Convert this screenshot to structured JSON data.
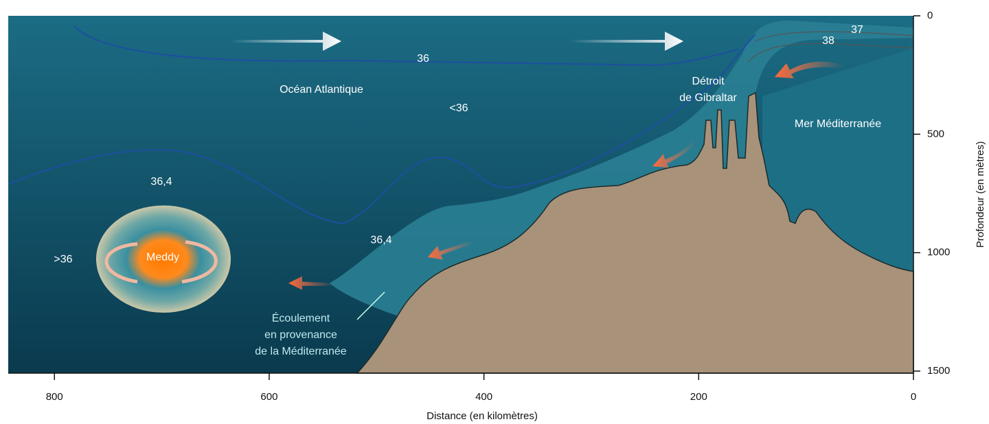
{
  "axes": {
    "x": {
      "label": "Distance (en kilomètres)",
      "lim": [
        843,
        0
      ],
      "ticks": [
        800,
        600,
        400,
        200,
        0
      ]
    },
    "y": {
      "label": "Profondeur (en mètres)",
      "lim": [
        0,
        1500
      ],
      "ticks": [
        0,
        500,
        1000,
        1500
      ]
    }
  },
  "labels": {
    "ocean": "Océan Atlantique",
    "less_36": "<36",
    "isohaline_36": "36",
    "isohaline_37": "37",
    "isohaline_38": "38",
    "strait": [
      "Détroit",
      "de Gibraltar"
    ],
    "sea": "Mer Méditerranée",
    "isohaline_36_4_left": "36,4",
    "isohaline_36_4_mid": "36,4",
    "more_36": ">36",
    "meddy": "Meddy",
    "outflow": [
      "Écoulement",
      "en provenance",
      "de la Méditerranée"
    ]
  }
}
